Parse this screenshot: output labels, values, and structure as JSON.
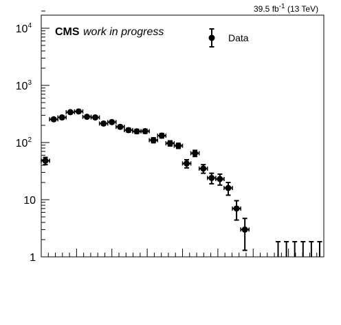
{
  "chart_data": {
    "type": "scatter",
    "title": "",
    "xlabel": "",
    "ylabel": "",
    "yscale": "log",
    "ylim": [
      1,
      20000
    ],
    "xlim": [
      0,
      34
    ],
    "experiment_label": "CMS",
    "status_label": "work in progress",
    "lumi_label": "39.5 fb",
    "lumi_exponent": "-1",
    "energy_label": "(13 TeV)",
    "y_ticks": [
      {
        "value": 1,
        "base": "1",
        "exp": ""
      },
      {
        "value": 10,
        "base": "10",
        "exp": ""
      },
      {
        "value": 100,
        "base": "10",
        "exp": "2"
      },
      {
        "value": 1000,
        "base": "10",
        "exp": "3"
      },
      {
        "value": 10000,
        "base": "10",
        "exp": "4"
      }
    ],
    "legend": {
      "position": "top-right",
      "entries": [
        "Data"
      ]
    },
    "series": [
      {
        "name": "Data",
        "color": "#000000",
        "x": [
          0.5,
          1.5,
          2.5,
          3.5,
          4.5,
          5.5,
          6.5,
          7.5,
          8.5,
          9.5,
          10.5,
          11.5,
          12.5,
          13.5,
          14.5,
          15.5,
          16.5,
          17.5,
          18.5,
          19.5,
          20.5,
          21.5,
          22.5,
          23.5,
          24.5,
          25.5,
          26.5
        ],
        "y": [
          48,
          255,
          275,
          340,
          350,
          282,
          275,
          215,
          228,
          188,
          165,
          157,
          158,
          110,
          132,
          97,
          88,
          43,
          65,
          35,
          24,
          23,
          16,
          7,
          3,
          null,
          null
        ],
        "yerr": [
          7,
          16,
          17,
          18,
          19,
          17,
          17,
          15,
          15,
          14,
          13,
          13,
          13,
          11,
          12,
          10,
          9,
          7,
          8,
          6,
          5,
          5,
          4,
          2.6,
          1.7,
          null,
          null
        ]
      }
    ],
    "upper_limit_bins_x": [
      28.5,
      29.5,
      30.5,
      31.5,
      32.5,
      33.5
    ]
  }
}
